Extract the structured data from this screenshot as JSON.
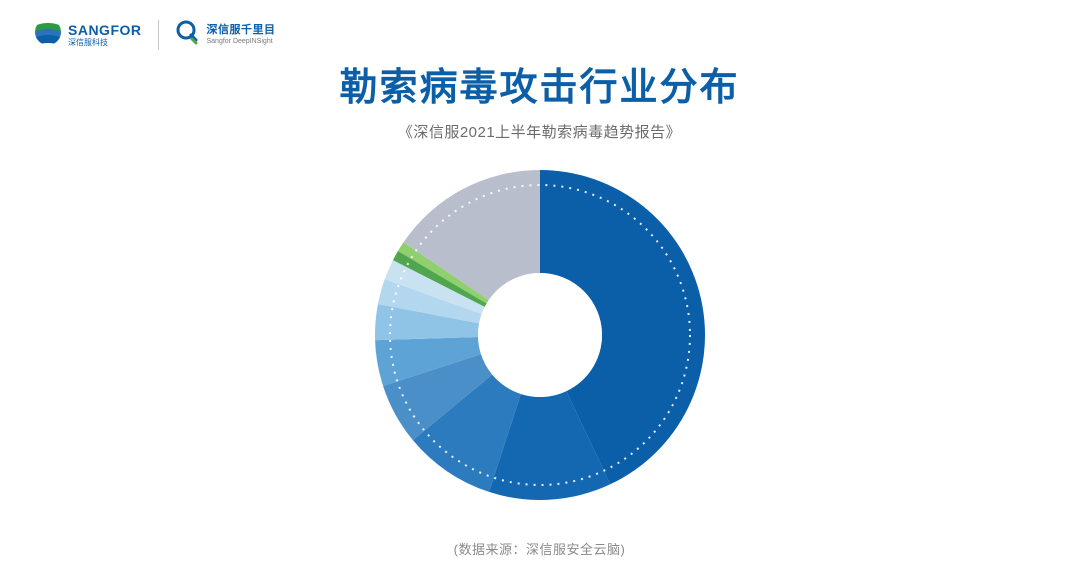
{
  "logos": {
    "left": {
      "main": "SANGFOR",
      "sub": "深信服科技"
    },
    "right": {
      "main": "深信服千里目",
      "sub": "Sangfor DeepINSight"
    }
  },
  "title": "勒索病毒攻击行业分布",
  "subtitle": "《深信服2021上半年勒索病毒趋势报告》",
  "footer": "(数据来源：深信服安全云脑)",
  "chart": {
    "type": "donut",
    "outer_radius": 165,
    "inner_radius": 62,
    "start_angle_deg": -90,
    "direction": "clockwise",
    "background_color": "#ffffff",
    "dotted_ring": {
      "radius": 150,
      "stroke": "#ffffff",
      "stroke_width": 2,
      "dash": "2 6",
      "opacity": 0.9
    },
    "slices": [
      {
        "value": 43.0,
        "color": "#0b5ea8"
      },
      {
        "value": 12.0,
        "color": "#1468b2"
      },
      {
        "value": 9.0,
        "color": "#2d7bbf"
      },
      {
        "value": 6.0,
        "color": "#4a8fc7"
      },
      {
        "value": 4.5,
        "color": "#5ea3d6"
      },
      {
        "value": 3.5,
        "color": "#90c4e6"
      },
      {
        "value": 2.5,
        "color": "#b3d7ee"
      },
      {
        "value": 2.0,
        "color": "#c9e2f2"
      },
      {
        "value": 1.0,
        "color": "#4fa64f"
      },
      {
        "value": 1.0,
        "color": "#8fcf6d"
      },
      {
        "value": 15.5,
        "color": "#b8becb"
      }
    ]
  },
  "colors": {
    "title": "#0b5ea8",
    "subtitle": "#6b6b6b",
    "footer": "#8a8a8a"
  }
}
